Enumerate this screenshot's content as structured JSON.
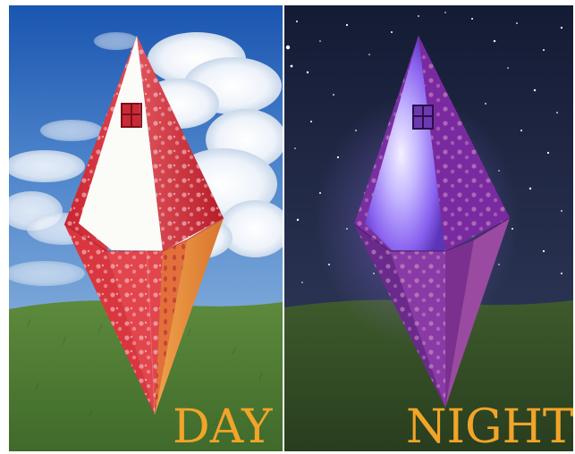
{
  "captions": {
    "day": "DAY",
    "night": "NIGHT"
  },
  "colors": {
    "day_sky_top": "#1f5db8",
    "day_sky_bottom": "#6f9fd6",
    "night_sky_top": "#1c2440",
    "night_sky_bottom": "#2a3352",
    "grass": "#4f7a35",
    "lantern_red": "#d8303a",
    "lantern_orange": "#e79245",
    "lantern_glow": "#8b6cff",
    "caption": "#f2a428"
  }
}
